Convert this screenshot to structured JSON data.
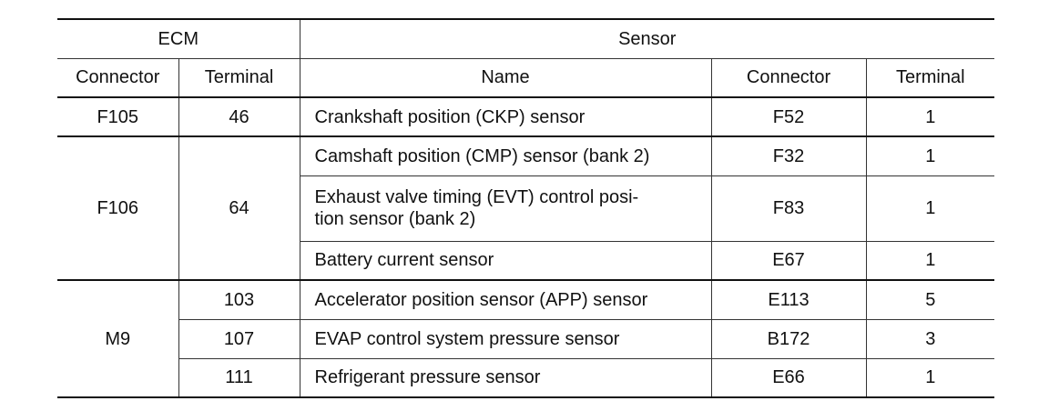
{
  "header": {
    "ecm": "ECM",
    "sensor": "Sensor",
    "ecm_connector": "Connector",
    "ecm_terminal": "Terminal",
    "sensor_name": "Name",
    "sensor_connector": "Connector",
    "sensor_terminal": "Terminal"
  },
  "rows": [
    {
      "ecm_connector": "F105",
      "ecm_terminal": "46",
      "name": "Crankshaft position (CKP) sensor",
      "connector": "F52",
      "terminal": "1"
    },
    {
      "ecm_connector": "F106",
      "ecm_terminal": "64",
      "name": "Camshaft position (CMP) sensor (bank 2)",
      "connector": "F32",
      "terminal": "1"
    },
    {
      "name_line1": "Exhaust valve timing (EVT) control posi-",
      "name_line2": "tion sensor (bank 2)",
      "connector": "F83",
      "terminal": "1"
    },
    {
      "name": "Battery current sensor",
      "connector": "E67",
      "terminal": "1"
    },
    {
      "ecm_connector": "M9",
      "ecm_terminal": "103",
      "name": "Accelerator position sensor (APP) sensor",
      "connector": "E113",
      "terminal": "5"
    },
    {
      "ecm_terminal": "107",
      "name": "EVAP control system pressure sensor",
      "connector": "B172",
      "terminal": "3"
    },
    {
      "ecm_terminal": "111",
      "name": "Refrigerant pressure sensor",
      "connector": "E66",
      "terminal": "1"
    }
  ]
}
